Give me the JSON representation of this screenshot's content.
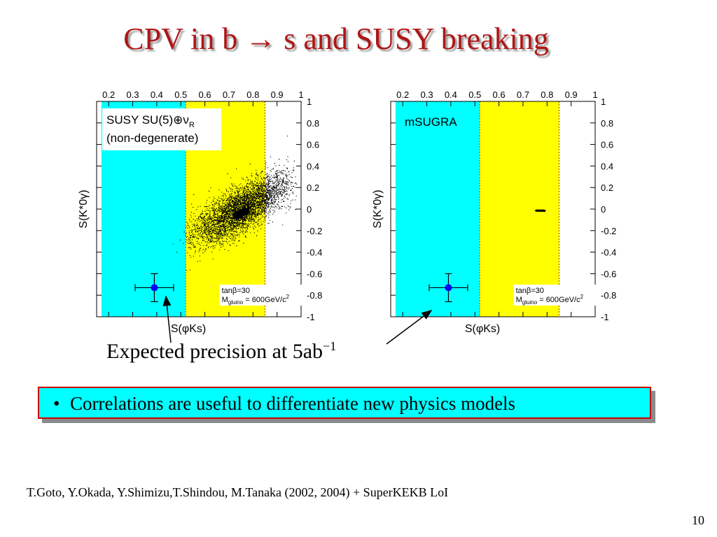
{
  "slide": {
    "title": "CPV in b → s and SUSY breaking",
    "expected_text": "Expected precision at 5ab",
    "expected_sup": "−1",
    "bullet": "Correlations are useful to differentiate new physics models",
    "refs": "T.Goto, Y.Okada, Y.Shimizu,T.Shindou, M.Tanaka (2002, 2004) + SuperKEKB LoI",
    "page_number": "10"
  },
  "colors": {
    "title": "#b01515",
    "cyan": "#00ffff",
    "yellow": "#ffff00",
    "callout_border": "#cc0000",
    "point": "#0000ff"
  },
  "chart_data": [
    {
      "type": "scatter",
      "model_label": "SUSY SU(5)⊕ν",
      "model_label_sub": "R",
      "model_label2": "(non-degenerate)",
      "xlabel": "S(φKs)",
      "ylabel": "S(K*0γ)",
      "xlim": [
        0.15,
        1.0
      ],
      "ylim": [
        -1,
        1
      ],
      "x_ticks": [
        "0.2",
        "0.3",
        "0.4",
        "0.5",
        "0.6",
        "0.7",
        "0.8",
        "0.9",
        "1"
      ],
      "y_ticks": [
        "1",
        "0.8",
        "0.6",
        "0.4",
        "0.2",
        "0",
        "-0.2",
        "-0.4",
        "-0.6",
        "-0.8",
        "-1"
      ],
      "bands": {
        "cyan": [
          0.17,
          0.52
        ],
        "yellow": [
          0.52,
          0.85
        ]
      },
      "note1": "tanβ=30",
      "note2_main": "M",
      "note2_sub": "gluino",
      "note2_rest": " = 600GeV/c",
      "note2_sup": "2",
      "measurement": {
        "x": 0.39,
        "y": -0.73,
        "xerr": 0.08,
        "yerr": 0.13
      },
      "cloud": {
        "x_center": 0.75,
        "y_center": 0.0
      }
    },
    {
      "type": "scatter",
      "model_label": "mSUGRA",
      "xlabel": "S(φKs)",
      "ylabel": "S(K*0γ)",
      "xlim": [
        0.15,
        1.0
      ],
      "ylim": [
        -1,
        1
      ],
      "x_ticks": [
        "0.2",
        "0.3",
        "0.4",
        "0.5",
        "0.6",
        "0.7",
        "0.8",
        "0.9",
        "1"
      ],
      "y_ticks": [
        "1",
        "0.8",
        "0.6",
        "0.4",
        "0.2",
        "0",
        "-0.2",
        "-0.4",
        "-0.6",
        "-0.8",
        "-1"
      ],
      "bands": {
        "cyan": [
          0.17,
          0.52
        ],
        "yellow": [
          0.52,
          0.85
        ]
      },
      "note1": "tanβ=30",
      "note2_main": "M",
      "note2_sub": "gluino",
      "note2_rest": " = 600GeV/c",
      "note2_sup": "2",
      "measurement": {
        "x": 0.39,
        "y": -0.73,
        "xerr": 0.08,
        "yerr": 0.13
      },
      "cluster": {
        "x_min": 0.75,
        "x_max": 0.79,
        "y": -0.01
      }
    }
  ]
}
